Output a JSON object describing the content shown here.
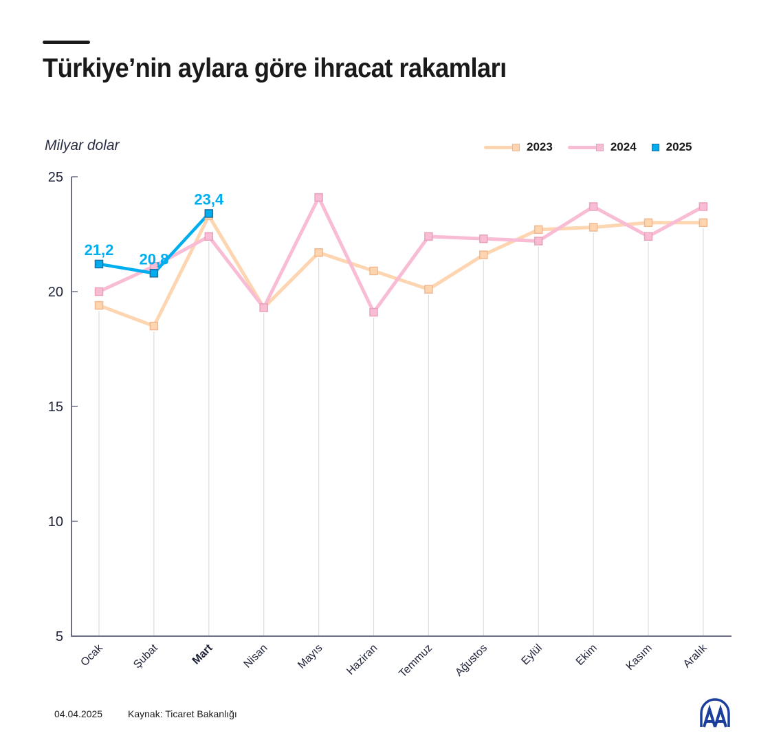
{
  "header": {
    "title": "Türkiye’nin aylara göre ihracat rakamları",
    "unit_label": "Milyar dolar"
  },
  "legend": [
    {
      "label": "2023",
      "color": "#fdd5b1",
      "border": "#f2b78e",
      "has_line": true
    },
    {
      "label": "2024",
      "color": "#f8bcd4",
      "border": "#e8a2bb",
      "has_line": true
    },
    {
      "label": "2025",
      "color": "#00aeef",
      "border": "#1d6e9c",
      "has_line": false
    }
  ],
  "footer": {
    "date": "04.04.2025",
    "source": "Kaynak: Ticaret Bakanlığı",
    "logo": "aa-logo-icon"
  },
  "colors": {
    "series_2023": "#fdd5b1",
    "series_2024": "#f8bcd4",
    "series_2025": "#00aeef",
    "axis": "#6b6f86",
    "gridline": "#dcdcdc",
    "label_2025": "#00aeef",
    "logo": "#1a3f9c"
  },
  "chart_data": {
    "type": "line",
    "title": "Türkiye’nin aylara göre ihracat rakamları",
    "xlabel": "",
    "ylabel": "Milyar dolar",
    "ylim": [
      5,
      25
    ],
    "yticks": [
      5,
      10,
      15,
      20,
      25
    ],
    "categories": [
      "Ocak",
      "Şubat",
      "Mart",
      "Nisan",
      "Mayıs",
      "Haziran",
      "Temmuz",
      "Ağustos",
      "Eylül",
      "Ekim",
      "Kasım",
      "Aralık"
    ],
    "highlighted_category": "Mart",
    "series": [
      {
        "name": "2023",
        "values": [
          19.4,
          18.5,
          23.3,
          19.3,
          21.7,
          20.9,
          20.1,
          21.6,
          22.7,
          22.8,
          23.0,
          23.0
        ]
      },
      {
        "name": "2024",
        "values": [
          20.0,
          21.1,
          22.4,
          19.3,
          24.1,
          19.1,
          22.4,
          22.3,
          22.2,
          23.7,
          22.4,
          23.7
        ]
      },
      {
        "name": "2025",
        "values": [
          21.2,
          20.8,
          23.4
        ]
      }
    ],
    "data_labels": [
      {
        "series": "2025",
        "category": "Ocak",
        "text": "21,2"
      },
      {
        "series": "2025",
        "category": "Şubat",
        "text": "20,8"
      },
      {
        "series": "2025",
        "category": "Mart",
        "text": "23,4"
      }
    ],
    "legend_position": "top-right",
    "grid": "vertical-drop-lines"
  }
}
